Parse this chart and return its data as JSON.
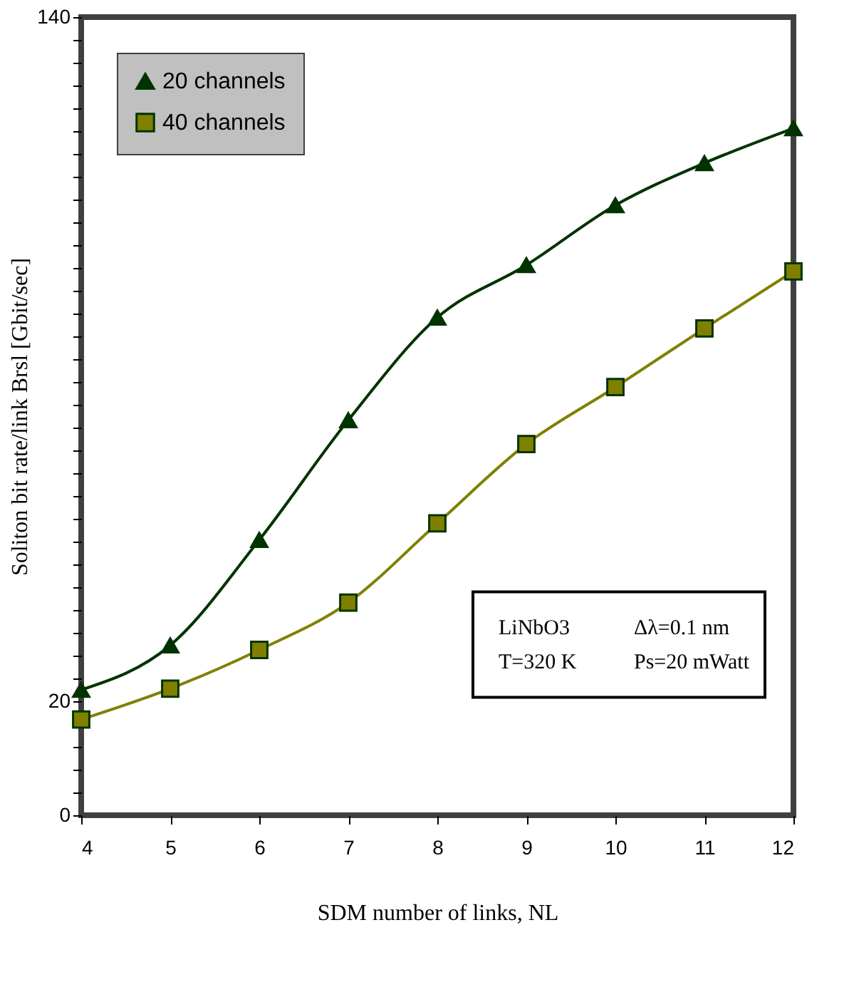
{
  "chart_data": {
    "type": "line",
    "xlabel": "SDM number of links, NL",
    "ylabel": "Soliton bit rate/link Brsl [Gbit/sec]",
    "x": [
      4,
      5,
      6,
      7,
      8,
      9,
      10,
      11,
      12
    ],
    "series": [
      {
        "name": "20 channels",
        "color": "#003300",
        "marker": "triangle",
        "values": [
          22.0,
          29.8,
          48.3,
          69.3,
          87.3,
          96.5,
          107.0,
          114.4,
          120.5
        ]
      },
      {
        "name": "40 channels",
        "color": "#808000",
        "marker": "square",
        "values": [
          16.8,
          22.2,
          29.0,
          37.3,
          51.2,
          65.1,
          75.1,
          85.4,
          95.4
        ]
      }
    ],
    "xlim": [
      4,
      12
    ],
    "xticks": [
      4,
      5,
      6,
      7,
      8,
      9,
      10,
      11,
      12
    ],
    "ylim": [
      0,
      140
    ],
    "yticks": [
      0,
      {
        "value": 4,
        "label": null
      },
      {
        "value": 8,
        "label": null
      },
      {
        "value": 12,
        "label": null
      },
      {
        "value": 16,
        "label": null
      },
      20,
      {
        "value": 24,
        "label": null
      },
      {
        "value": 28,
        "label": null
      },
      {
        "value": 32,
        "label": null
      },
      {
        "value": 36,
        "label": null
      },
      {
        "value": 40,
        "label": null
      },
      {
        "value": 44,
        "label": null
      },
      {
        "value": 48,
        "label": null
      },
      {
        "value": 52,
        "label": null
      },
      {
        "value": 56,
        "label": null
      },
      {
        "value": 60,
        "label": null
      },
      {
        "value": 64,
        "label": null
      },
      {
        "value": 68,
        "label": null
      },
      {
        "value": 72,
        "label": null
      },
      {
        "value": 76,
        "label": null
      },
      {
        "value": 80,
        "label": null
      },
      {
        "value": 84,
        "label": null
      },
      {
        "value": 88,
        "label": null
      },
      {
        "value": 92,
        "label": null
      },
      {
        "value": 96,
        "label": null
      },
      {
        "value": 100,
        "label": null
      },
      {
        "value": 104,
        "label": null
      },
      {
        "value": 108,
        "label": null
      },
      {
        "value": 112,
        "label": null
      },
      {
        "value": 116,
        "label": null
      },
      {
        "value": 120,
        "label": null
      },
      {
        "value": 124,
        "label": null
      },
      {
        "value": 128,
        "label": null
      },
      {
        "value": 132,
        "label": null
      },
      {
        "value": 136,
        "label": null
      },
      140
    ],
    "annotations": [
      "LiNbO3",
      "Δλ=0.1 nm",
      "T=320 K",
      "Ps=20 mWatt"
    ],
    "legend": "top left",
    "grid": false,
    "line_style": "solid"
  }
}
